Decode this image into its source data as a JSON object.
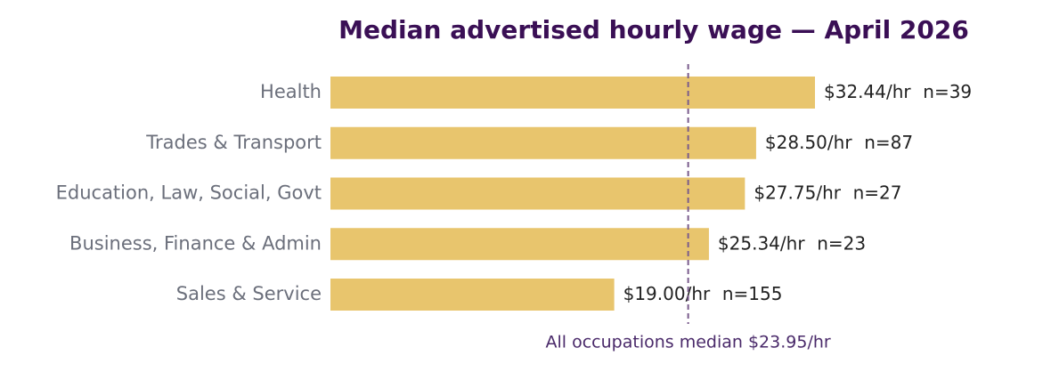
{
  "chart_data": {
    "type": "bar",
    "orientation": "horizontal",
    "title": "Median advertised hourly wage — April 2026",
    "categories": [
      "Health",
      "Trades & Transport",
      "Education, Law, Social, Govt",
      "Business, Finance & Admin",
      "Sales & Service"
    ],
    "values": [
      32.44,
      28.5,
      27.75,
      25.34,
      19.0
    ],
    "value_labels": [
      "$32.44/hr",
      "$28.50/hr",
      "$27.75/hr",
      "$25.34/hr",
      "$19.00/hr"
    ],
    "counts": [
      39,
      87,
      27,
      23,
      155
    ],
    "count_labels": [
      "n=39",
      "n=87",
      "n=27",
      "n=23",
      "n=155"
    ],
    "color": "#e8c56d",
    "reference": {
      "value": 23.95,
      "label": "All occupations median $23.95/hr",
      "color": "#7a5c8c"
    }
  }
}
